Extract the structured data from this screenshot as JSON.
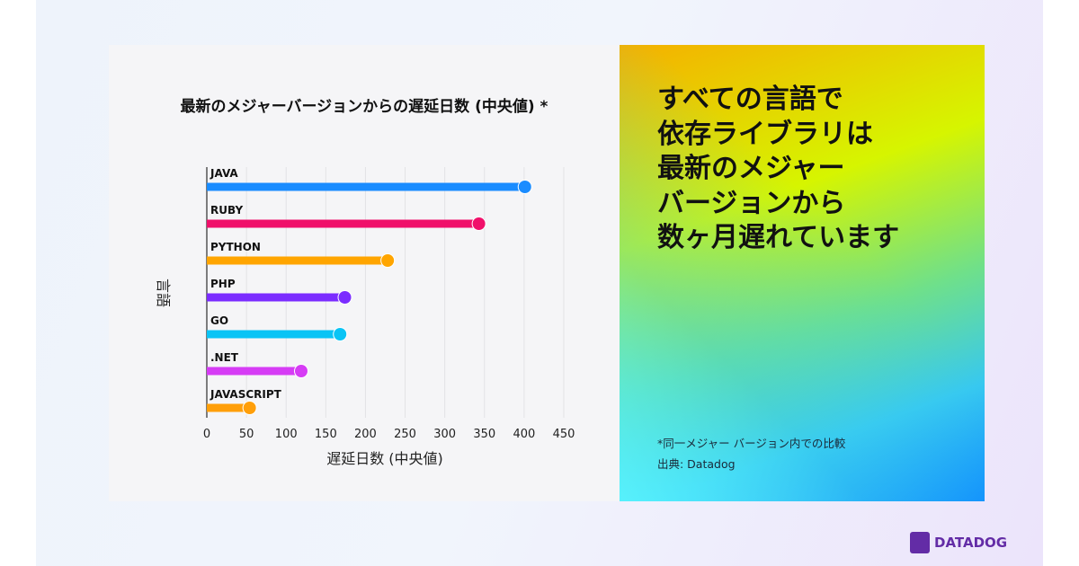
{
  "headline": "すべての言語で\n依存ライブラリは\n最新のメジャー\nバージョンから\n数ヶ月遅れています",
  "footnote": "*同一メジャー バージョン内での比較",
  "source": "出典: Datadog",
  "logo_text": "DATADOG",
  "chart_data": {
    "type": "bar",
    "orientation": "horizontal",
    "title": "最新のメジャーバージョンからの遅延日数 (中央値) *",
    "xlabel": "遅延日数 (中央値)",
    "ylabel": "言語",
    "xlim": [
      0,
      450
    ],
    "xticks": [
      0,
      50,
      100,
      150,
      200,
      250,
      300,
      350,
      400,
      450
    ],
    "grid": true,
    "categories": [
      "JAVA",
      "RUBY",
      "PYTHON",
      "PHP",
      "GO",
      ".NET",
      "JAVASCRIPT"
    ],
    "values": [
      401,
      343,
      228,
      174,
      168,
      119,
      54
    ],
    "colors": [
      "#1a8cff",
      "#f0106a",
      "#ffa500",
      "#7b2cff",
      "#0ac4f5",
      "#d63cf5",
      "#ff9f0a"
    ]
  }
}
